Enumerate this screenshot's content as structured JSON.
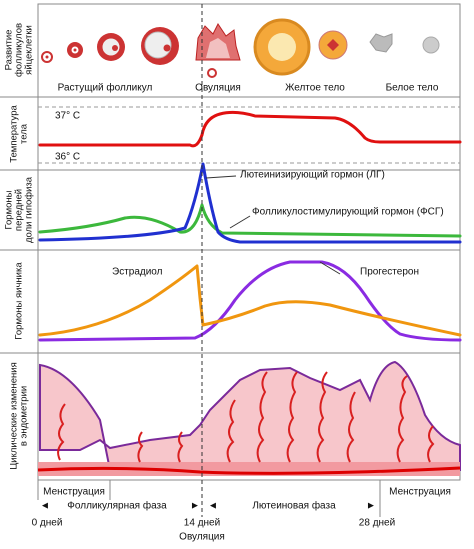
{
  "panels": [
    {
      "label": [
        "Развитие",
        "фолликулов",
        "яйцеклетки"
      ],
      "stages": [
        "Растущий фолликул",
        "Овуляция",
        "Желтое тело",
        "Белое тело"
      ]
    },
    {
      "label": [
        "Температура",
        "тела"
      ],
      "annotations": [
        "37° С",
        "36° С"
      ]
    },
    {
      "label": [
        "Гормоны",
        "передней",
        "доли гипофиза"
      ],
      "annotations": [
        "Лютеинизирующий гормон (ЛГ)",
        "Фолликулостимулирующий гормон (ФСГ)"
      ]
    },
    {
      "label": [
        "Гормоны яичника"
      ],
      "annotations": [
        "Эстрадиол",
        "Прогестерон"
      ]
    },
    {
      "label": [
        "Циклические изменения",
        "в эндометрии"
      ],
      "annotations": [
        "Менструация",
        "Менструация"
      ]
    }
  ],
  "phases": [
    "Фолликулярная фаза",
    "Лютеиновая фаза"
  ],
  "days": [
    "0 дней",
    "14 дней",
    "28 дней"
  ],
  "ovulation_label": "Овуляция"
}
